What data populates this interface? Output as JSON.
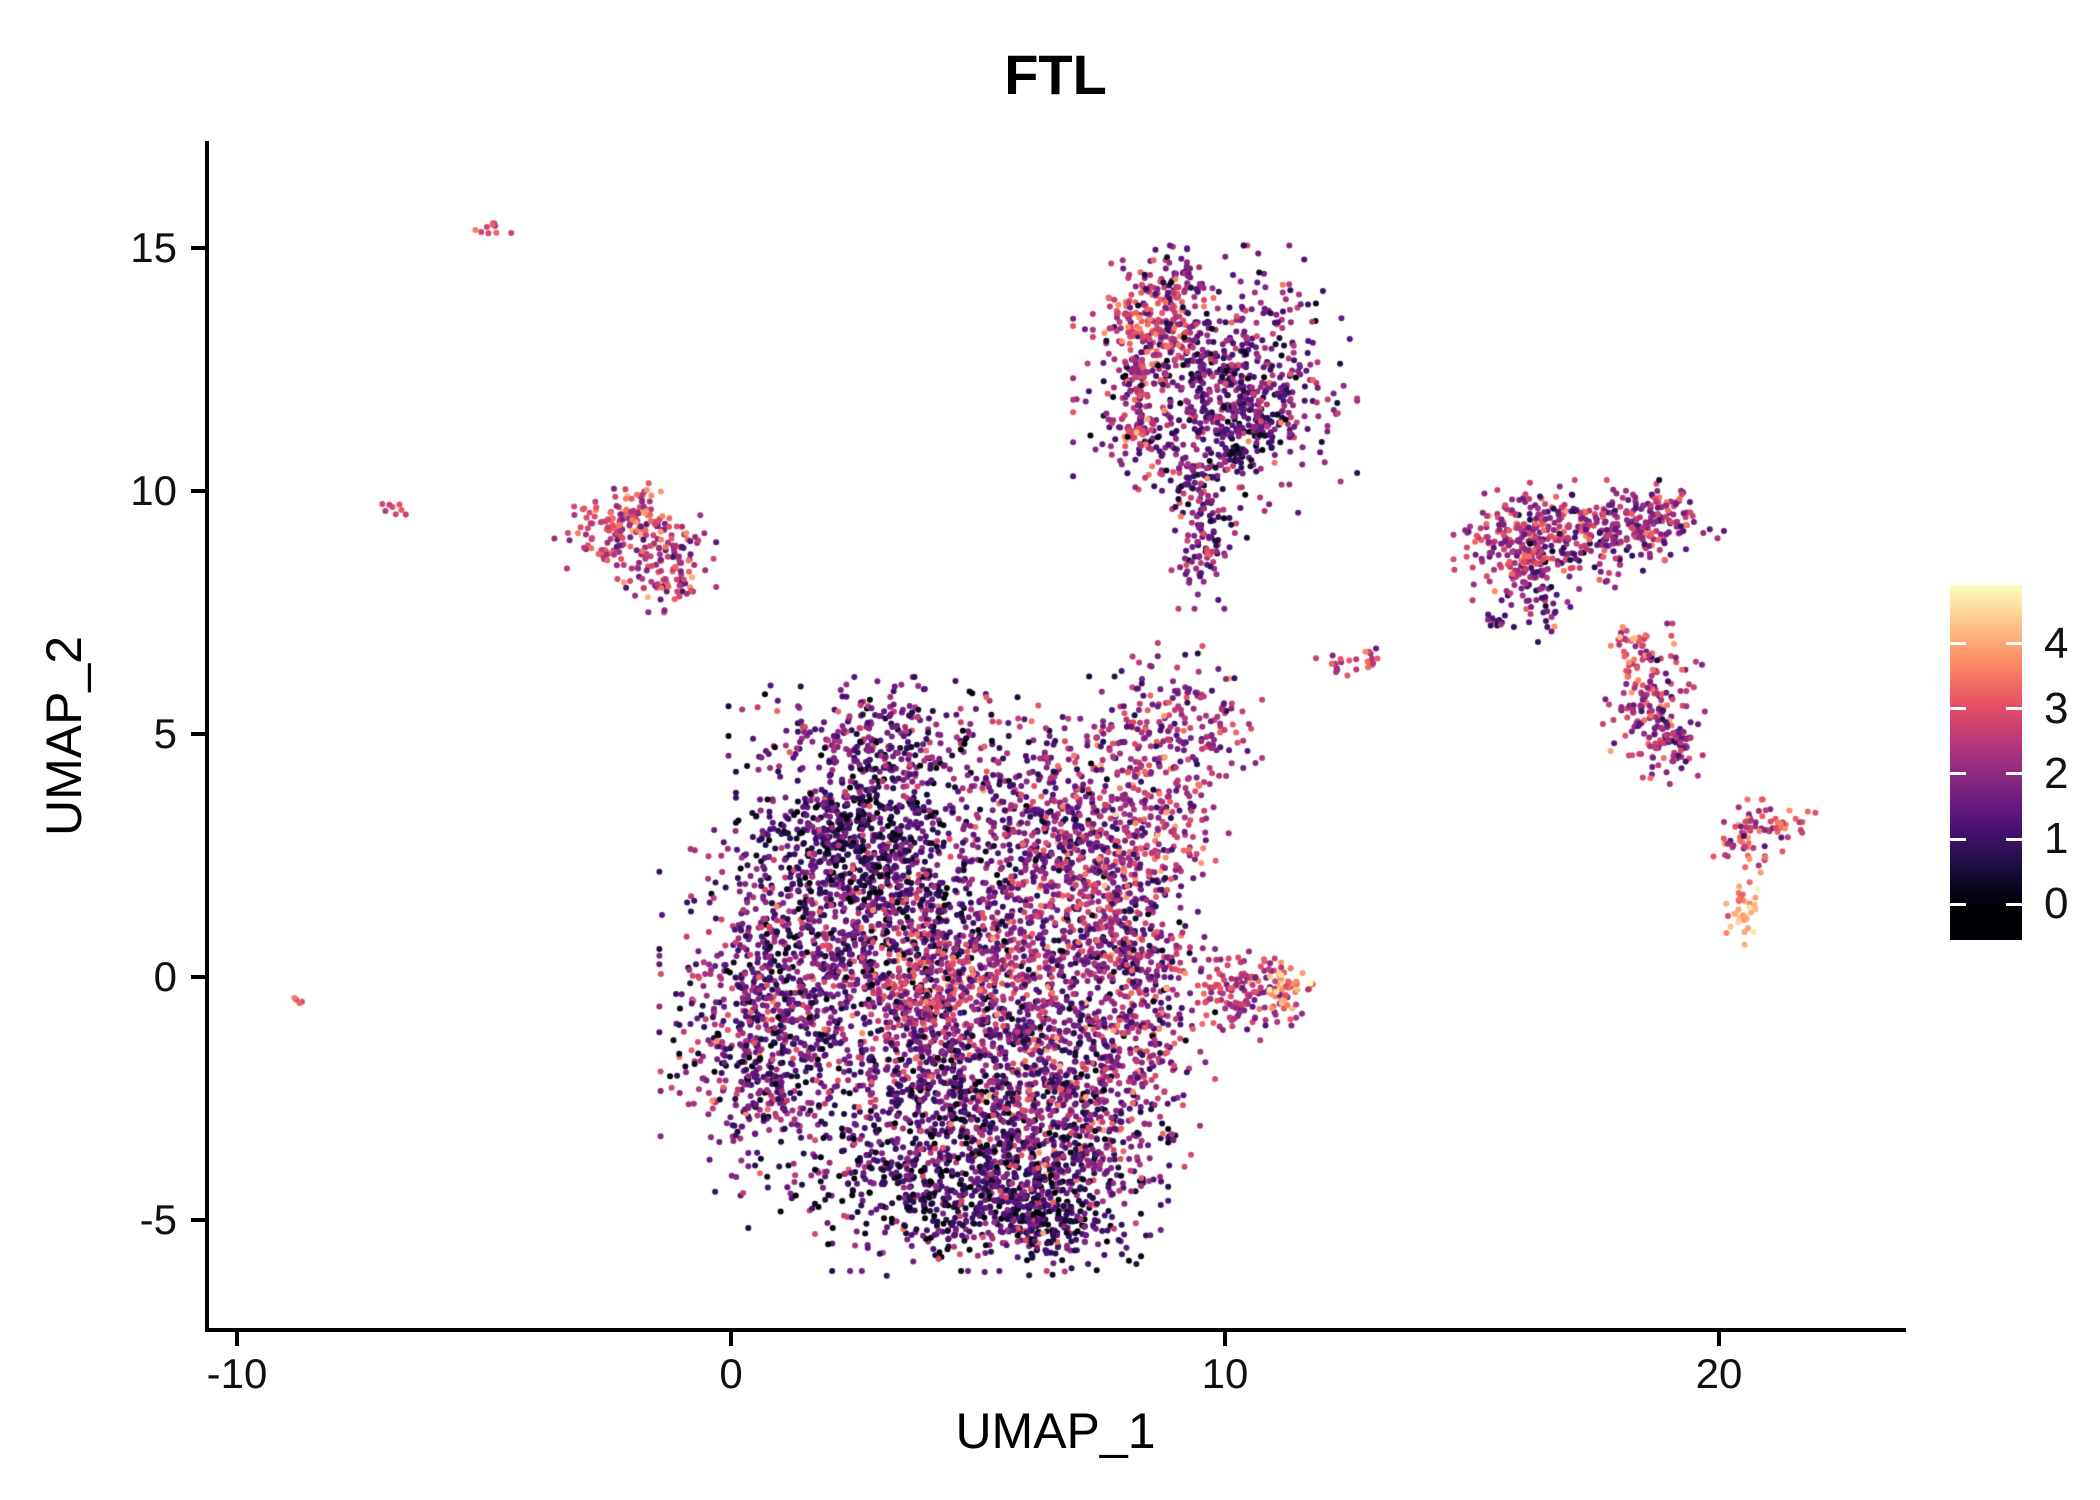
{
  "title": "FTL",
  "axes": {
    "x": {
      "label": "UMAP_1",
      "ticks": [
        -10,
        0,
        10,
        20
      ]
    },
    "y": {
      "label": "UMAP_2",
      "ticks": [
        -5,
        0,
        5,
        10,
        15
      ]
    }
  },
  "legend": {
    "ticks": [
      0,
      1,
      2,
      3,
      4
    ],
    "domain": [
      -0.55,
      4.9
    ]
  },
  "chart_data": {
    "type": "scatter",
    "title": "FTL",
    "xlabel": "UMAP_1",
    "ylabel": "UMAP_2",
    "xlim": [
      -10.6,
      23.7
    ],
    "ylim": [
      -7.3,
      17.2
    ],
    "grid": false,
    "legend_position": "right",
    "color_scale": {
      "name": "magma",
      "domain": [
        0,
        4.9
      ],
      "legend_ticks": [
        0,
        1,
        2,
        3,
        4
      ],
      "stops": [
        "#000004",
        "#1c1044",
        "#4f127b",
        "#812581",
        "#b5367a",
        "#e55064",
        "#fb8861",
        "#fec287",
        "#fcfdbf"
      ]
    },
    "point_radius_px": 3.0,
    "representation": "gaussian_clusters",
    "clusters": [
      {
        "name": "central-top-arc",
        "x": 3.2,
        "y": 4.8,
        "sx": 1.3,
        "sy": 0.55,
        "n": 320,
        "mean": 1.6,
        "sd": 0.8
      },
      {
        "name": "central-upper-dark",
        "x": 2.6,
        "y": 2.9,
        "sx": 1.0,
        "sy": 0.85,
        "n": 520,
        "mean": 0.85,
        "sd": 0.7
      },
      {
        "name": "central-left-mid",
        "x": 1.3,
        "y": 0.4,
        "sx": 1.1,
        "sy": 1.3,
        "n": 540,
        "mean": 1.7,
        "sd": 0.8
      },
      {
        "name": "central-left-lower",
        "x": 0.7,
        "y": -1.6,
        "sx": 0.85,
        "sy": 1.2,
        "n": 440,
        "mean": 1.5,
        "sd": 0.9
      },
      {
        "name": "central-pink-streak",
        "x": 4.3,
        "y": -0.3,
        "sx": 0.95,
        "sy": 0.7,
        "n": 300,
        "mean": 2.7,
        "sd": 0.5
      },
      {
        "name": "central-mid",
        "x": 3.4,
        "y": 1.3,
        "sx": 1.3,
        "sy": 1.2,
        "n": 580,
        "mean": 1.4,
        "sd": 0.9
      },
      {
        "name": "central-right-mid",
        "x": 6.0,
        "y": 0.9,
        "sx": 1.25,
        "sy": 1.35,
        "n": 620,
        "mean": 1.9,
        "sd": 0.8
      },
      {
        "name": "central-right-edge",
        "x": 7.8,
        "y": 1.4,
        "sx": 0.7,
        "sy": 1.5,
        "n": 380,
        "mean": 2.0,
        "sd": 0.9
      },
      {
        "name": "central-bottom",
        "x": 4.6,
        "y": -3.3,
        "sx": 1.7,
        "sy": 1.1,
        "n": 760,
        "mean": 1.3,
        "sd": 0.9
      },
      {
        "name": "central-bottom-dark",
        "x": 5.2,
        "y": -4.4,
        "sx": 1.4,
        "sy": 0.7,
        "n": 460,
        "mean": 0.9,
        "sd": 0.8
      },
      {
        "name": "central-bottom-right",
        "x": 7.0,
        "y": -2.7,
        "sx": 1.0,
        "sy": 1.1,
        "n": 430,
        "mean": 2.0,
        "sd": 0.9
      },
      {
        "name": "central-mid-dark-band",
        "x": 4.8,
        "y": -1.7,
        "sx": 1.5,
        "sy": 0.9,
        "n": 430,
        "mean": 1.3,
        "sd": 0.8
      },
      {
        "name": "central-upper-right",
        "x": 6.7,
        "y": 3.5,
        "sx": 1.1,
        "sy": 0.95,
        "n": 340,
        "mean": 1.9,
        "sd": 0.9
      },
      {
        "name": "central-knob-upper",
        "x": 9.0,
        "y": 5.0,
        "sx": 0.7,
        "sy": 0.75,
        "n": 210,
        "mean": 2.2,
        "sd": 0.8
      },
      {
        "name": "central-knob-bridge",
        "x": 8.7,
        "y": 3.0,
        "sx": 0.55,
        "sy": 0.6,
        "n": 110,
        "mean": 2.5,
        "sd": 0.8
      },
      {
        "name": "central-right-branch",
        "x": 8.3,
        "y": -0.6,
        "sx": 0.6,
        "sy": 1.2,
        "n": 240,
        "mean": 1.9,
        "sd": 0.9
      },
      {
        "name": "central-bottom-tail",
        "x": 6.3,
        "y": -5.0,
        "sx": 0.8,
        "sy": 0.45,
        "n": 170,
        "mean": 1.1,
        "sd": 0.8
      },
      {
        "name": "east-branch",
        "x": 10.4,
        "y": -0.3,
        "sx": 0.55,
        "sy": 0.4,
        "n": 160,
        "mean": 2.5,
        "sd": 0.7
      },
      {
        "name": "east-branch-bright-tip",
        "x": 11.25,
        "y": -0.2,
        "sx": 0.22,
        "sy": 0.18,
        "n": 40,
        "mean": 3.8,
        "sd": 0.5
      },
      {
        "name": "top-cluster-main",
        "x": 9.8,
        "y": 12.3,
        "sx": 1.15,
        "sy": 1.1,
        "n": 680,
        "mean": 1.7,
        "sd": 0.8
      },
      {
        "name": "top-cluster-red-left",
        "x": 8.45,
        "y": 13.5,
        "sx": 0.45,
        "sy": 0.5,
        "n": 150,
        "mean": 2.9,
        "sd": 0.5
      },
      {
        "name": "top-cluster-spur",
        "x": 9.0,
        "y": 14.4,
        "sx": 0.25,
        "sy": 0.28,
        "n": 40,
        "mean": 1.6,
        "sd": 0.8
      },
      {
        "name": "top-cluster-left-edge",
        "x": 8.3,
        "y": 11.9,
        "sx": 0.28,
        "sy": 0.75,
        "n": 90,
        "mean": 2.4,
        "sd": 0.7
      },
      {
        "name": "top-cluster-red-spot",
        "x": 8.25,
        "y": 11.3,
        "sx": 0.18,
        "sy": 0.18,
        "n": 30,
        "mean": 3.0,
        "sd": 0.5
      },
      {
        "name": "top-cluster-tail",
        "x": 9.6,
        "y": 9.7,
        "sx": 0.35,
        "sy": 0.85,
        "n": 120,
        "mean": 1.8,
        "sd": 0.8
      },
      {
        "name": "top-cluster-tail-end",
        "x": 9.5,
        "y": 8.6,
        "sx": 0.2,
        "sy": 0.28,
        "n": 25,
        "mean": 2.0,
        "sd": 0.7
      },
      {
        "name": "top-cluster-dark-core",
        "x": 10.4,
        "y": 11.4,
        "sx": 0.6,
        "sy": 0.7,
        "n": 150,
        "mean": 1.2,
        "sd": 0.7
      },
      {
        "name": "west-cluster-a",
        "x": -2.2,
        "y": 9.2,
        "sx": 0.55,
        "sy": 0.42,
        "n": 150,
        "mean": 2.6,
        "sd": 0.6
      },
      {
        "name": "west-cluster-b",
        "x": -1.3,
        "y": 8.45,
        "sx": 0.4,
        "sy": 0.42,
        "n": 110,
        "mean": 2.4,
        "sd": 0.7
      },
      {
        "name": "west-cluster-bright",
        "x": -1.9,
        "y": 9.55,
        "sx": 0.22,
        "sy": 0.15,
        "n": 25,
        "mean": 3.4,
        "sd": 0.4
      },
      {
        "name": "right-band-left",
        "x": 16.0,
        "y": 9.0,
        "sx": 0.55,
        "sy": 0.5,
        "n": 190,
        "mean": 2.5,
        "sd": 0.6
      },
      {
        "name": "right-band-mid",
        "x": 17.3,
        "y": 9.1,
        "sx": 0.8,
        "sy": 0.45,
        "n": 210,
        "mean": 2.0,
        "sd": 0.8
      },
      {
        "name": "right-band-right",
        "x": 18.6,
        "y": 9.4,
        "sx": 0.6,
        "sy": 0.3,
        "n": 130,
        "mean": 2.2,
        "sd": 0.7
      },
      {
        "name": "right-band-tail",
        "x": 16.35,
        "y": 8.0,
        "sx": 0.3,
        "sy": 0.5,
        "n": 65,
        "mean": 1.8,
        "sd": 0.8
      },
      {
        "name": "right-band-dot",
        "x": 15.5,
        "y": 7.3,
        "sx": 0.15,
        "sy": 0.15,
        "n": 12,
        "mean": 1.5,
        "sd": 0.6
      },
      {
        "name": "right-lower-main",
        "x": 18.7,
        "y": 5.4,
        "sx": 0.42,
        "sy": 0.75,
        "n": 175,
        "mean": 2.3,
        "sd": 0.7
      },
      {
        "name": "right-lower-bright-top",
        "x": 18.3,
        "y": 6.8,
        "sx": 0.25,
        "sy": 0.28,
        "n": 35,
        "mean": 3.2,
        "sd": 0.6
      },
      {
        "name": "right-lower-bottom",
        "x": 19.25,
        "y": 4.7,
        "sx": 0.22,
        "sy": 0.22,
        "n": 28,
        "mean": 2.0,
        "sd": 0.7
      },
      {
        "name": "far-right-top",
        "x": 20.6,
        "y": 2.9,
        "sx": 0.32,
        "sy": 0.3,
        "n": 60,
        "mean": 2.6,
        "sd": 0.7
      },
      {
        "name": "far-right-bright",
        "x": 20.5,
        "y": 1.3,
        "sx": 0.18,
        "sy": 0.3,
        "n": 35,
        "mean": 3.9,
        "sd": 0.5
      },
      {
        "name": "far-right-arm",
        "x": 21.5,
        "y": 3.1,
        "sx": 0.28,
        "sy": 0.14,
        "n": 22,
        "mean": 3.0,
        "sd": 0.4
      },
      {
        "name": "mid-gap-dots-a",
        "x": 12.35,
        "y": 6.5,
        "sx": 0.25,
        "sy": 0.15,
        "n": 18,
        "mean": 2.4,
        "sd": 0.6
      },
      {
        "name": "mid-gap-dots-b",
        "x": 12.95,
        "y": 6.6,
        "sx": 0.1,
        "sy": 0.1,
        "n": 7,
        "mean": 2.2,
        "sd": 0.6
      },
      {
        "name": "lone-dot-southwest",
        "x": -8.75,
        "y": -0.5,
        "sx": 0.07,
        "sy": 0.07,
        "n": 4,
        "mean": 3.0,
        "sd": 0.3
      },
      {
        "name": "tiny-west-dot",
        "x": -6.8,
        "y": 9.6,
        "sx": 0.13,
        "sy": 0.11,
        "n": 8,
        "mean": 2.9,
        "sd": 0.4
      },
      {
        "name": "tiny-northwest-streak",
        "x": -4.95,
        "y": 15.4,
        "sx": 0.2,
        "sy": 0.1,
        "n": 10,
        "mean": 3.0,
        "sd": 0.3
      }
    ]
  }
}
